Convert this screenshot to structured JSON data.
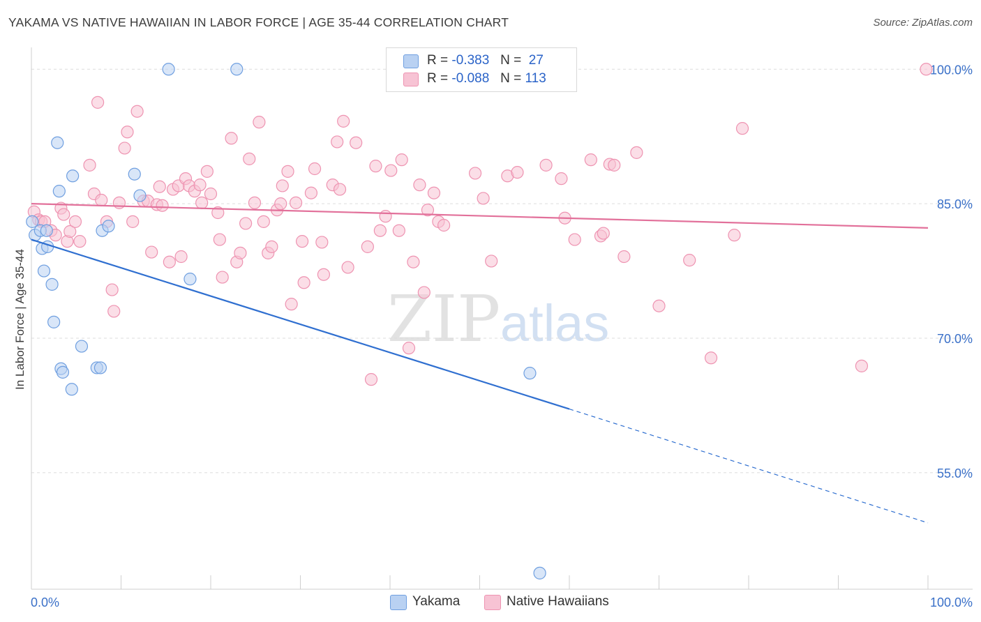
{
  "header": {
    "title": "YAKAMA VS NATIVE HAWAIIAN IN LABOR FORCE | AGE 35-44 CORRELATION CHART",
    "source": "Source: ZipAtlas.com"
  },
  "watermark": {
    "part1": "ZIP",
    "part2": "atlas"
  },
  "legend": {
    "rows": [
      {
        "r_label": "R =",
        "r_value": "-0.383",
        "n_label": "N =",
        "n_value": "27"
      },
      {
        "r_label": "R =",
        "r_value": "-0.088",
        "n_label": "N =",
        "n_value": "113"
      }
    ]
  },
  "bottom_legend": {
    "yakama": "Yakama",
    "native": "Native Hawaiians"
  },
  "colors": {
    "yakama_fill": "#b9d1f2",
    "yakama_stroke": "#6f9fe0",
    "yakama_line": "#2f6fd0",
    "native_fill": "#f7c3d4",
    "native_stroke": "#ee93b1",
    "native_line": "#e2709a",
    "tick_color": "#3a70c8"
  },
  "chart_data": {
    "type": "scatter",
    "title": "YAKAMA VS NATIVE HAWAIIAN IN LABOR FORCE | AGE 35-44 CORRELATION CHART",
    "xlabel": "",
    "ylabel": "In Labor Force | Age 35-44",
    "xlim": [
      0,
      100
    ],
    "ylim": [
      42,
      101.5
    ],
    "x_tick_labels": [
      "0.0%",
      "100.0%"
    ],
    "y_ticks": [
      {
        "value": 100,
        "label": "100.0%"
      },
      {
        "value": 85,
        "label": "85.0%"
      },
      {
        "value": 70,
        "label": "70.0%"
      },
      {
        "value": 55,
        "label": "55.0%"
      }
    ],
    "grid": "horizontal dashed",
    "legend_position": "top-center",
    "series": [
      {
        "name": "Yakama",
        "r": -0.383,
        "n": 27,
        "trend": {
          "x0": 0,
          "y0": 81.0,
          "x1": 60,
          "y1": 62.1,
          "dashed_to_x": 100,
          "dashed_to_y": 49.4
        },
        "points": [
          [
            0.1,
            83.0
          ],
          [
            0.4,
            81.5
          ],
          [
            1.0,
            82.0
          ],
          [
            1.2,
            80.0
          ],
          [
            1.4,
            77.5
          ],
          [
            1.7,
            82.0
          ],
          [
            1.8,
            80.2
          ],
          [
            2.3,
            76.0
          ],
          [
            2.5,
            71.8
          ],
          [
            2.9,
            91.8
          ],
          [
            3.1,
            86.4
          ],
          [
            3.3,
            66.6
          ],
          [
            3.5,
            66.2
          ],
          [
            4.5,
            64.3
          ],
          [
            4.6,
            88.1
          ],
          [
            5.6,
            69.1
          ],
          [
            7.3,
            66.7
          ],
          [
            7.7,
            66.7
          ],
          [
            7.9,
            82.0
          ],
          [
            8.6,
            82.5
          ],
          [
            11.5,
            88.3
          ],
          [
            12.1,
            85.9
          ],
          [
            15.3,
            100.0
          ],
          [
            17.7,
            76.6
          ],
          [
            22.9,
            100.0
          ],
          [
            55.6,
            66.1
          ],
          [
            56.7,
            43.8
          ]
        ]
      },
      {
        "name": "Native Hawaiians",
        "r": -0.088,
        "n": 113,
        "trend": {
          "x0": 0,
          "y0": 85.0,
          "x1": 100,
          "y1": 82.3
        },
        "points": [
          [
            0.3,
            84.1
          ],
          [
            0.8,
            83.2
          ],
          [
            1.1,
            83.0
          ],
          [
            1.5,
            83.0
          ],
          [
            2.2,
            82.0
          ],
          [
            2.7,
            81.5
          ],
          [
            3.3,
            84.5
          ],
          [
            3.6,
            83.8
          ],
          [
            4.0,
            80.8
          ],
          [
            4.3,
            81.9
          ],
          [
            4.9,
            83.0
          ],
          [
            5.4,
            80.8
          ],
          [
            6.5,
            89.3
          ],
          [
            7.0,
            86.1
          ],
          [
            7.4,
            96.3
          ],
          [
            7.8,
            85.4
          ],
          [
            8.4,
            83.0
          ],
          [
            9.0,
            75.4
          ],
          [
            9.2,
            73.0
          ],
          [
            9.8,
            85.1
          ],
          [
            10.4,
            91.2
          ],
          [
            10.7,
            93.0
          ],
          [
            11.3,
            83.0
          ],
          [
            11.8,
            95.3
          ],
          [
            12.5,
            85.3
          ],
          [
            13.0,
            85.3
          ],
          [
            13.4,
            79.6
          ],
          [
            14.0,
            84.9
          ],
          [
            14.3,
            86.9
          ],
          [
            14.6,
            84.8
          ],
          [
            15.4,
            78.5
          ],
          [
            15.8,
            86.6
          ],
          [
            16.4,
            87.0
          ],
          [
            16.7,
            79.1
          ],
          [
            17.2,
            87.8
          ],
          [
            17.6,
            87.0
          ],
          [
            18.2,
            86.4
          ],
          [
            18.8,
            87.1
          ],
          [
            19.0,
            85.1
          ],
          [
            19.6,
            88.6
          ],
          [
            20.0,
            86.1
          ],
          [
            20.8,
            84.0
          ],
          [
            21.0,
            81.0
          ],
          [
            21.3,
            76.8
          ],
          [
            22.3,
            92.3
          ],
          [
            22.9,
            78.5
          ],
          [
            23.3,
            79.5
          ],
          [
            23.9,
            82.8
          ],
          [
            24.3,
            90.0
          ],
          [
            24.9,
            85.1
          ],
          [
            25.4,
            94.1
          ],
          [
            25.9,
            83.0
          ],
          [
            26.4,
            79.5
          ],
          [
            26.8,
            80.2
          ],
          [
            27.4,
            84.3
          ],
          [
            27.8,
            85.0
          ],
          [
            28.0,
            87.0
          ],
          [
            28.6,
            88.6
          ],
          [
            29.0,
            73.8
          ],
          [
            29.5,
            85.1
          ],
          [
            30.2,
            80.8
          ],
          [
            30.4,
            76.2
          ],
          [
            31.2,
            86.2
          ],
          [
            31.6,
            88.9
          ],
          [
            32.4,
            80.7
          ],
          [
            32.6,
            77.1
          ],
          [
            33.6,
            87.1
          ],
          [
            34.1,
            91.9
          ],
          [
            34.4,
            86.6
          ],
          [
            34.8,
            94.2
          ],
          [
            35.3,
            77.9
          ],
          [
            36.2,
            91.8
          ],
          [
            37.5,
            80.2
          ],
          [
            37.9,
            65.4
          ],
          [
            38.4,
            89.2
          ],
          [
            38.9,
            82.0
          ],
          [
            39.5,
            83.6
          ],
          [
            40.1,
            88.7
          ],
          [
            41.0,
            82.0
          ],
          [
            41.3,
            89.9
          ],
          [
            42.1,
            68.9
          ],
          [
            42.6,
            78.5
          ],
          [
            43.3,
            87.1
          ],
          [
            43.8,
            75.1
          ],
          [
            44.2,
            84.3
          ],
          [
            44.9,
            86.2
          ],
          [
            45.4,
            83.0
          ],
          [
            46.0,
            82.6
          ],
          [
            49.5,
            88.4
          ],
          [
            50.4,
            85.6
          ],
          [
            51.3,
            78.6
          ],
          [
            53.1,
            88.1
          ],
          [
            54.2,
            88.5
          ],
          [
            57.4,
            89.3
          ],
          [
            59.1,
            87.8
          ],
          [
            59.5,
            83.4
          ],
          [
            60.6,
            81.0
          ],
          [
            62.4,
            89.9
          ],
          [
            63.5,
            81.4
          ],
          [
            63.8,
            81.7
          ],
          [
            64.5,
            89.4
          ],
          [
            65.0,
            89.3
          ],
          [
            66.1,
            79.1
          ],
          [
            67.5,
            90.7
          ],
          [
            70.0,
            73.6
          ],
          [
            73.4,
            78.7
          ],
          [
            75.8,
            67.8
          ],
          [
            78.4,
            81.5
          ],
          [
            79.3,
            93.4
          ],
          [
            92.6,
            66.9
          ],
          [
            99.8,
            100.0
          ]
        ]
      }
    ]
  }
}
